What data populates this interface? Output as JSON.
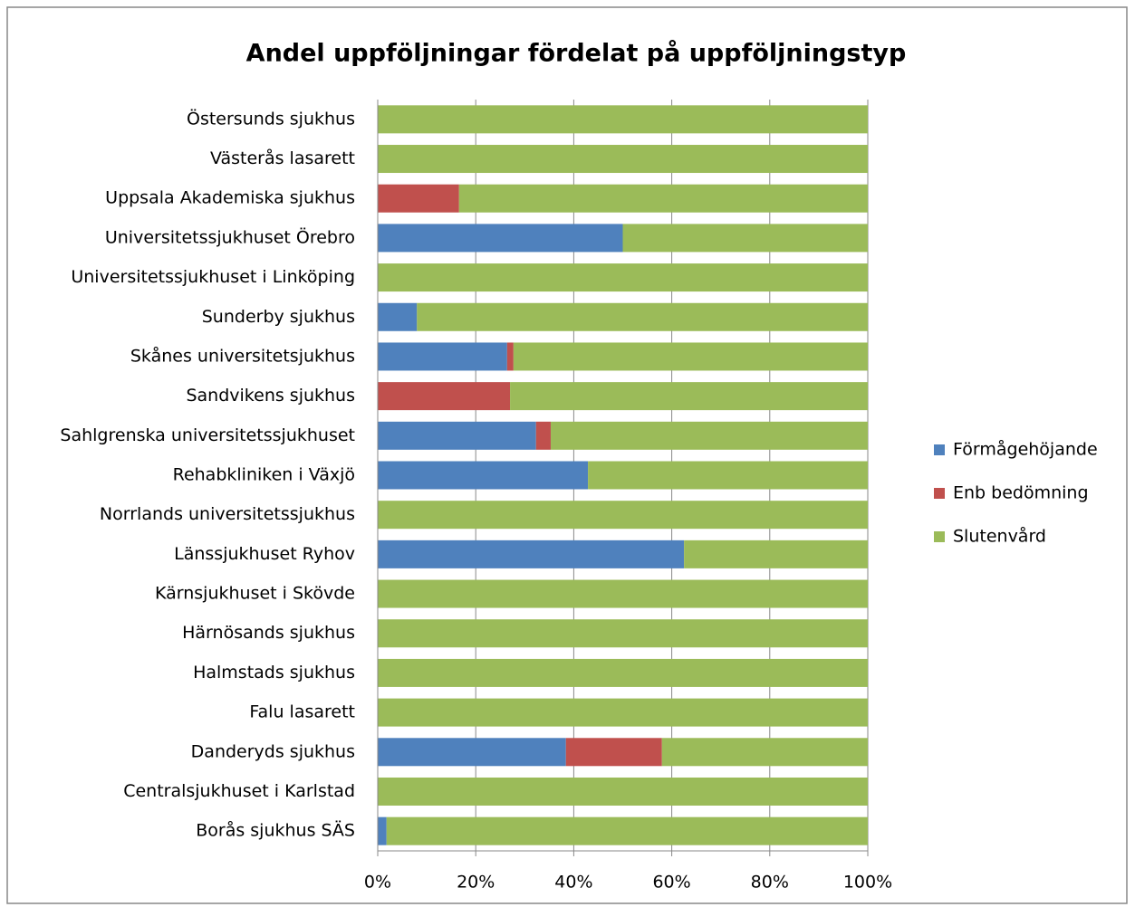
{
  "chart_data": {
    "type": "stacked_barh",
    "title": "Andel uppföljningar fördelat på uppföljningstyp",
    "categories": [
      "Östersunds sjukhus",
      "Västerås lasarett",
      "Uppsala Akademiska sjukhus",
      "Universitetssjukhuset Örebro",
      "Universitetssjukhuset i Linköping",
      "Sunderby sjukhus",
      "Skånes universitetsjukhus",
      "Sandvikens sjukhus",
      "Sahlgrenska universitetssjukhuset",
      "Rehabkliniken i Växjö",
      "Norrlands universitetssjukhus",
      "Länssjukhuset Ryhov",
      "Kärnsjukhuset i Skövde",
      "Härnösands sjukhus",
      "Halmstads sjukhus",
      "Falu lasarett",
      "Danderyds sjukhus",
      "Centralsjukhuset i Karlstad",
      "Borås sjukhus SÄS"
    ],
    "series": [
      {
        "name": "Förmågehöjande",
        "color": "#4f81bd",
        "values": [
          0,
          0,
          0,
          50,
          0,
          8,
          26.4,
          0,
          32.3,
          42.9,
          0,
          62.5,
          0,
          0,
          0,
          0,
          38.4,
          0,
          1.8
        ]
      },
      {
        "name": "Enb bedömning",
        "color": "#c0504d",
        "values": [
          0,
          0,
          16.6,
          0,
          0,
          0,
          1.3,
          27,
          3,
          0,
          0,
          0,
          0,
          0,
          0,
          0,
          19.6,
          0,
          0
        ]
      },
      {
        "name": "Slutenvård",
        "color": "#9bbb59",
        "values": [
          100,
          100,
          83.4,
          50,
          100,
          92,
          72.3,
          73,
          64.7,
          57.1,
          100,
          37.5,
          100,
          100,
          100,
          100,
          42,
          100,
          98.2
        ]
      }
    ],
    "xlim": [
      0,
      100
    ],
    "xticks": [
      {
        "value": 0,
        "label": "0%"
      },
      {
        "value": 20,
        "label": "20%"
      },
      {
        "value": 40,
        "label": "40%"
      },
      {
        "value": 60,
        "label": "60%"
      },
      {
        "value": 80,
        "label": "80%"
      },
      {
        "value": 100,
        "label": "100%"
      }
    ],
    "grid": true,
    "legend": "right"
  }
}
